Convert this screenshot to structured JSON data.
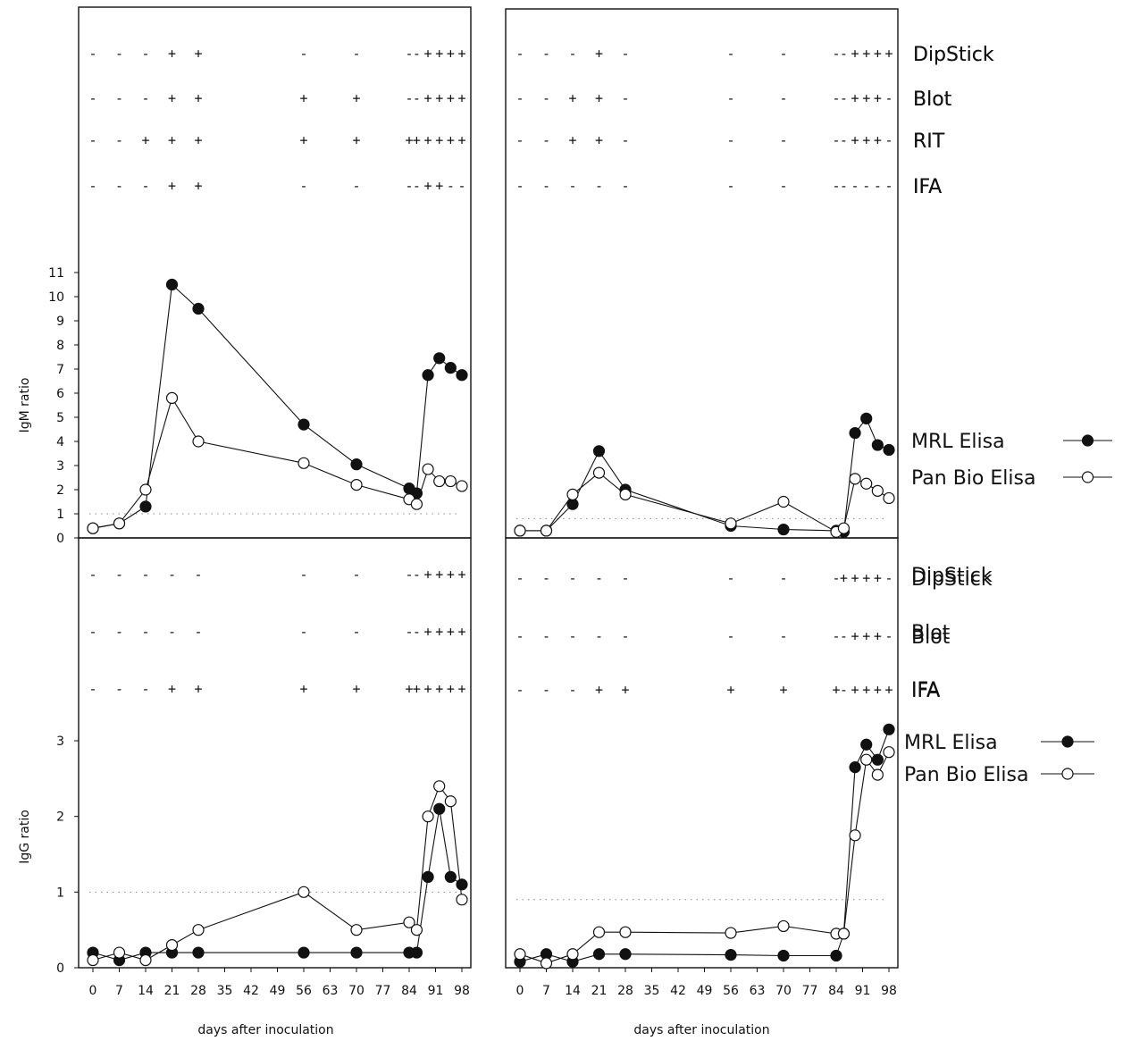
{
  "chart_data": [
    {
      "panel": "top-left",
      "type": "line",
      "ylabel": "IgM ratio",
      "xlabel": "",
      "ylim": [
        0,
        11
      ],
      "yticks": [
        0,
        1,
        2,
        3,
        4,
        5,
        6,
        7,
        8,
        9,
        10,
        11
      ],
      "cutoff": 1,
      "series": [
        {
          "name": "MRL Elisa",
          "marker": "filled",
          "x": [
            0,
            7,
            14,
            21,
            28,
            56,
            70,
            84,
            86,
            89,
            92,
            95,
            98
          ],
          "y": [
            0.4,
            0.6,
            1.3,
            10.5,
            9.5,
            4.7,
            3.05,
            2.05,
            1.85,
            6.75,
            7.45,
            7.05,
            6.75
          ]
        },
        {
          "name": "Pan Bio Elisa",
          "marker": "open",
          "x": [
            0,
            7,
            14,
            21,
            28,
            56,
            70,
            84,
            86,
            89,
            92,
            95,
            98
          ],
          "y": [
            0.4,
            0.6,
            2.0,
            5.8,
            4.0,
            3.1,
            2.2,
            1.6,
            1.4,
            2.85,
            2.35,
            2.35,
            2.15
          ]
        }
      ],
      "tests": [
        {
          "label": "DipStick",
          "signs": [
            "-",
            "-",
            "-",
            "+",
            "+",
            "-",
            "-",
            "-",
            "-",
            "+",
            "+",
            "+",
            "+"
          ]
        },
        {
          "label": "Blot",
          "signs": [
            "-",
            "-",
            "-",
            "+",
            "+",
            "+",
            "+",
            "-",
            "-",
            "+",
            "+",
            "+",
            "+"
          ]
        },
        {
          "label": "RIT",
          "signs": [
            "-",
            "-",
            "+",
            "+",
            "+",
            "+",
            "+",
            "+",
            "+",
            "+",
            "+",
            "+",
            "+"
          ]
        },
        {
          "label": "IFA",
          "signs": [
            "-",
            "-",
            "-",
            "+",
            "+",
            "-",
            "-",
            "-",
            "-",
            "+",
            "+",
            "-",
            "-"
          ]
        }
      ]
    },
    {
      "panel": "top-right",
      "type": "line",
      "ylabel": "",
      "xlabel": "",
      "ylim": [
        0,
        11
      ],
      "cutoff": 0.8,
      "series": [
        {
          "name": "MRL Elisa",
          "marker": "filled",
          "x": [
            0,
            7,
            14,
            21,
            28,
            56,
            70,
            84,
            86,
            89,
            92,
            95,
            98
          ],
          "y": [
            0.3,
            0.3,
            1.4,
            3.6,
            2.0,
            0.5,
            0.35,
            0.3,
            0.25,
            4.35,
            4.95,
            3.85,
            3.65
          ]
        },
        {
          "name": "Pan Bio Elisa",
          "marker": "open",
          "x": [
            0,
            7,
            14,
            21,
            28,
            56,
            70,
            84,
            86,
            89,
            92,
            95,
            98
          ],
          "y": [
            0.3,
            0.3,
            1.8,
            2.7,
            1.8,
            0.6,
            1.5,
            0.25,
            0.4,
            2.45,
            2.25,
            1.95,
            1.65
          ]
        }
      ],
      "tests": [
        {
          "label": "DipStick",
          "signs": [
            "-",
            "-",
            "-",
            "+",
            "-",
            "-",
            "-",
            "-",
            "-",
            "+",
            "+",
            "+",
            "+"
          ]
        },
        {
          "label": "Blot",
          "signs": [
            "-",
            "-",
            "+",
            "+",
            "-",
            "-",
            "-",
            "-",
            "-",
            "+",
            "+",
            "+",
            "-"
          ]
        },
        {
          "label": "RIT",
          "signs": [
            "-",
            "-",
            "+",
            "+",
            "-",
            "-",
            "-",
            "-",
            "-",
            "+",
            "+",
            "+",
            "-"
          ]
        },
        {
          "label": "IFA",
          "signs": [
            "-",
            "-",
            "-",
            "-",
            "-",
            "-",
            "-",
            "-",
            "-",
            "-",
            "-",
            "-",
            "-"
          ]
        }
      ]
    },
    {
      "panel": "bottom-left",
      "type": "line",
      "ylabel": "IgG ratio",
      "xlabel": "days after inoculation",
      "ylim": [
        0,
        3.5
      ],
      "yticks": [
        0,
        1,
        2,
        3
      ],
      "xticks": [
        0,
        7,
        14,
        21,
        28,
        35,
        42,
        49,
        56,
        63,
        70,
        77,
        84,
        91,
        98
      ],
      "cutoff": 1,
      "series": [
        {
          "name": "MRL Elisa",
          "marker": "filled",
          "x": [
            0,
            7,
            14,
            21,
            28,
            56,
            70,
            84,
            86,
            89,
            92,
            95,
            98
          ],
          "y": [
            0.2,
            0.1,
            0.2,
            0.2,
            0.2,
            0.2,
            0.2,
            0.2,
            0.2,
            1.2,
            2.1,
            1.2,
            1.1
          ]
        },
        {
          "name": "Pan Bio Elisa",
          "marker": "open",
          "x": [
            0,
            7,
            14,
            21,
            28,
            56,
            70,
            84,
            86,
            89,
            92,
            95,
            98
          ],
          "y": [
            0.1,
            0.2,
            0.1,
            0.3,
            0.5,
            1.0,
            0.5,
            0.6,
            0.5,
            2.0,
            2.4,
            2.2,
            0.9
          ]
        }
      ],
      "tests": [
        {
          "label": "DipStick",
          "signs": [
            "-",
            "-",
            "-",
            "-",
            "-",
            "-",
            "-",
            "-",
            "-",
            "+",
            "+",
            "+",
            "+"
          ]
        },
        {
          "label": "Blot",
          "signs": [
            "-",
            "-",
            "-",
            "-",
            "-",
            "-",
            "-",
            "-",
            "-",
            "+",
            "+",
            "+",
            "+"
          ]
        },
        {
          "label": "IFA",
          "signs": [
            "-",
            "-",
            "-",
            "+",
            "+",
            "+",
            "+",
            "+",
            "+",
            "+",
            "+",
            "+",
            "+"
          ]
        }
      ]
    },
    {
      "panel": "bottom-right",
      "type": "line",
      "ylabel": "",
      "xlabel": "days after inoculation",
      "ylim": [
        0,
        3.5
      ],
      "xticks": [
        0,
        7,
        14,
        21,
        28,
        35,
        42,
        49,
        56,
        63,
        70,
        77,
        84,
        91,
        98
      ],
      "cutoff": 0.9,
      "series": [
        {
          "name": "MRL Elisa",
          "marker": "filled",
          "x": [
            0,
            7,
            14,
            21,
            28,
            56,
            70,
            84,
            86,
            89,
            92,
            95,
            98
          ],
          "y": [
            0.08,
            0.18,
            0.08,
            0.18,
            0.18,
            0.17,
            0.16,
            0.16,
            0.45,
            2.65,
            2.95,
            2.75,
            3.15
          ]
        },
        {
          "name": "Pan Bio Elisa",
          "marker": "open",
          "x": [
            0,
            7,
            14,
            21,
            28,
            56,
            70,
            84,
            86,
            89,
            92,
            95,
            98
          ],
          "y": [
            0.18,
            0.06,
            0.18,
            0.47,
            0.47,
            0.46,
            0.55,
            0.45,
            0.45,
            1.75,
            2.75,
            2.55,
            2.85
          ]
        }
      ],
      "tests": [
        {
          "label": "DipStick",
          "signs": [
            "-",
            "-",
            "-",
            "-",
            "-",
            "-",
            "-",
            "-",
            "+",
            "+",
            "+",
            "+",
            "-"
          ]
        },
        {
          "label": "Blot",
          "signs": [
            "-",
            "-",
            "-",
            "-",
            "-",
            "-",
            "-",
            "-",
            "-",
            "+",
            "+",
            "+",
            "-"
          ]
        },
        {
          "label": "IFA",
          "signs": [
            "-",
            "-",
            "-",
            "+",
            "+",
            "+",
            "+",
            "+",
            "-",
            "+",
            "+",
            "+",
            "+"
          ]
        }
      ]
    }
  ]
}
